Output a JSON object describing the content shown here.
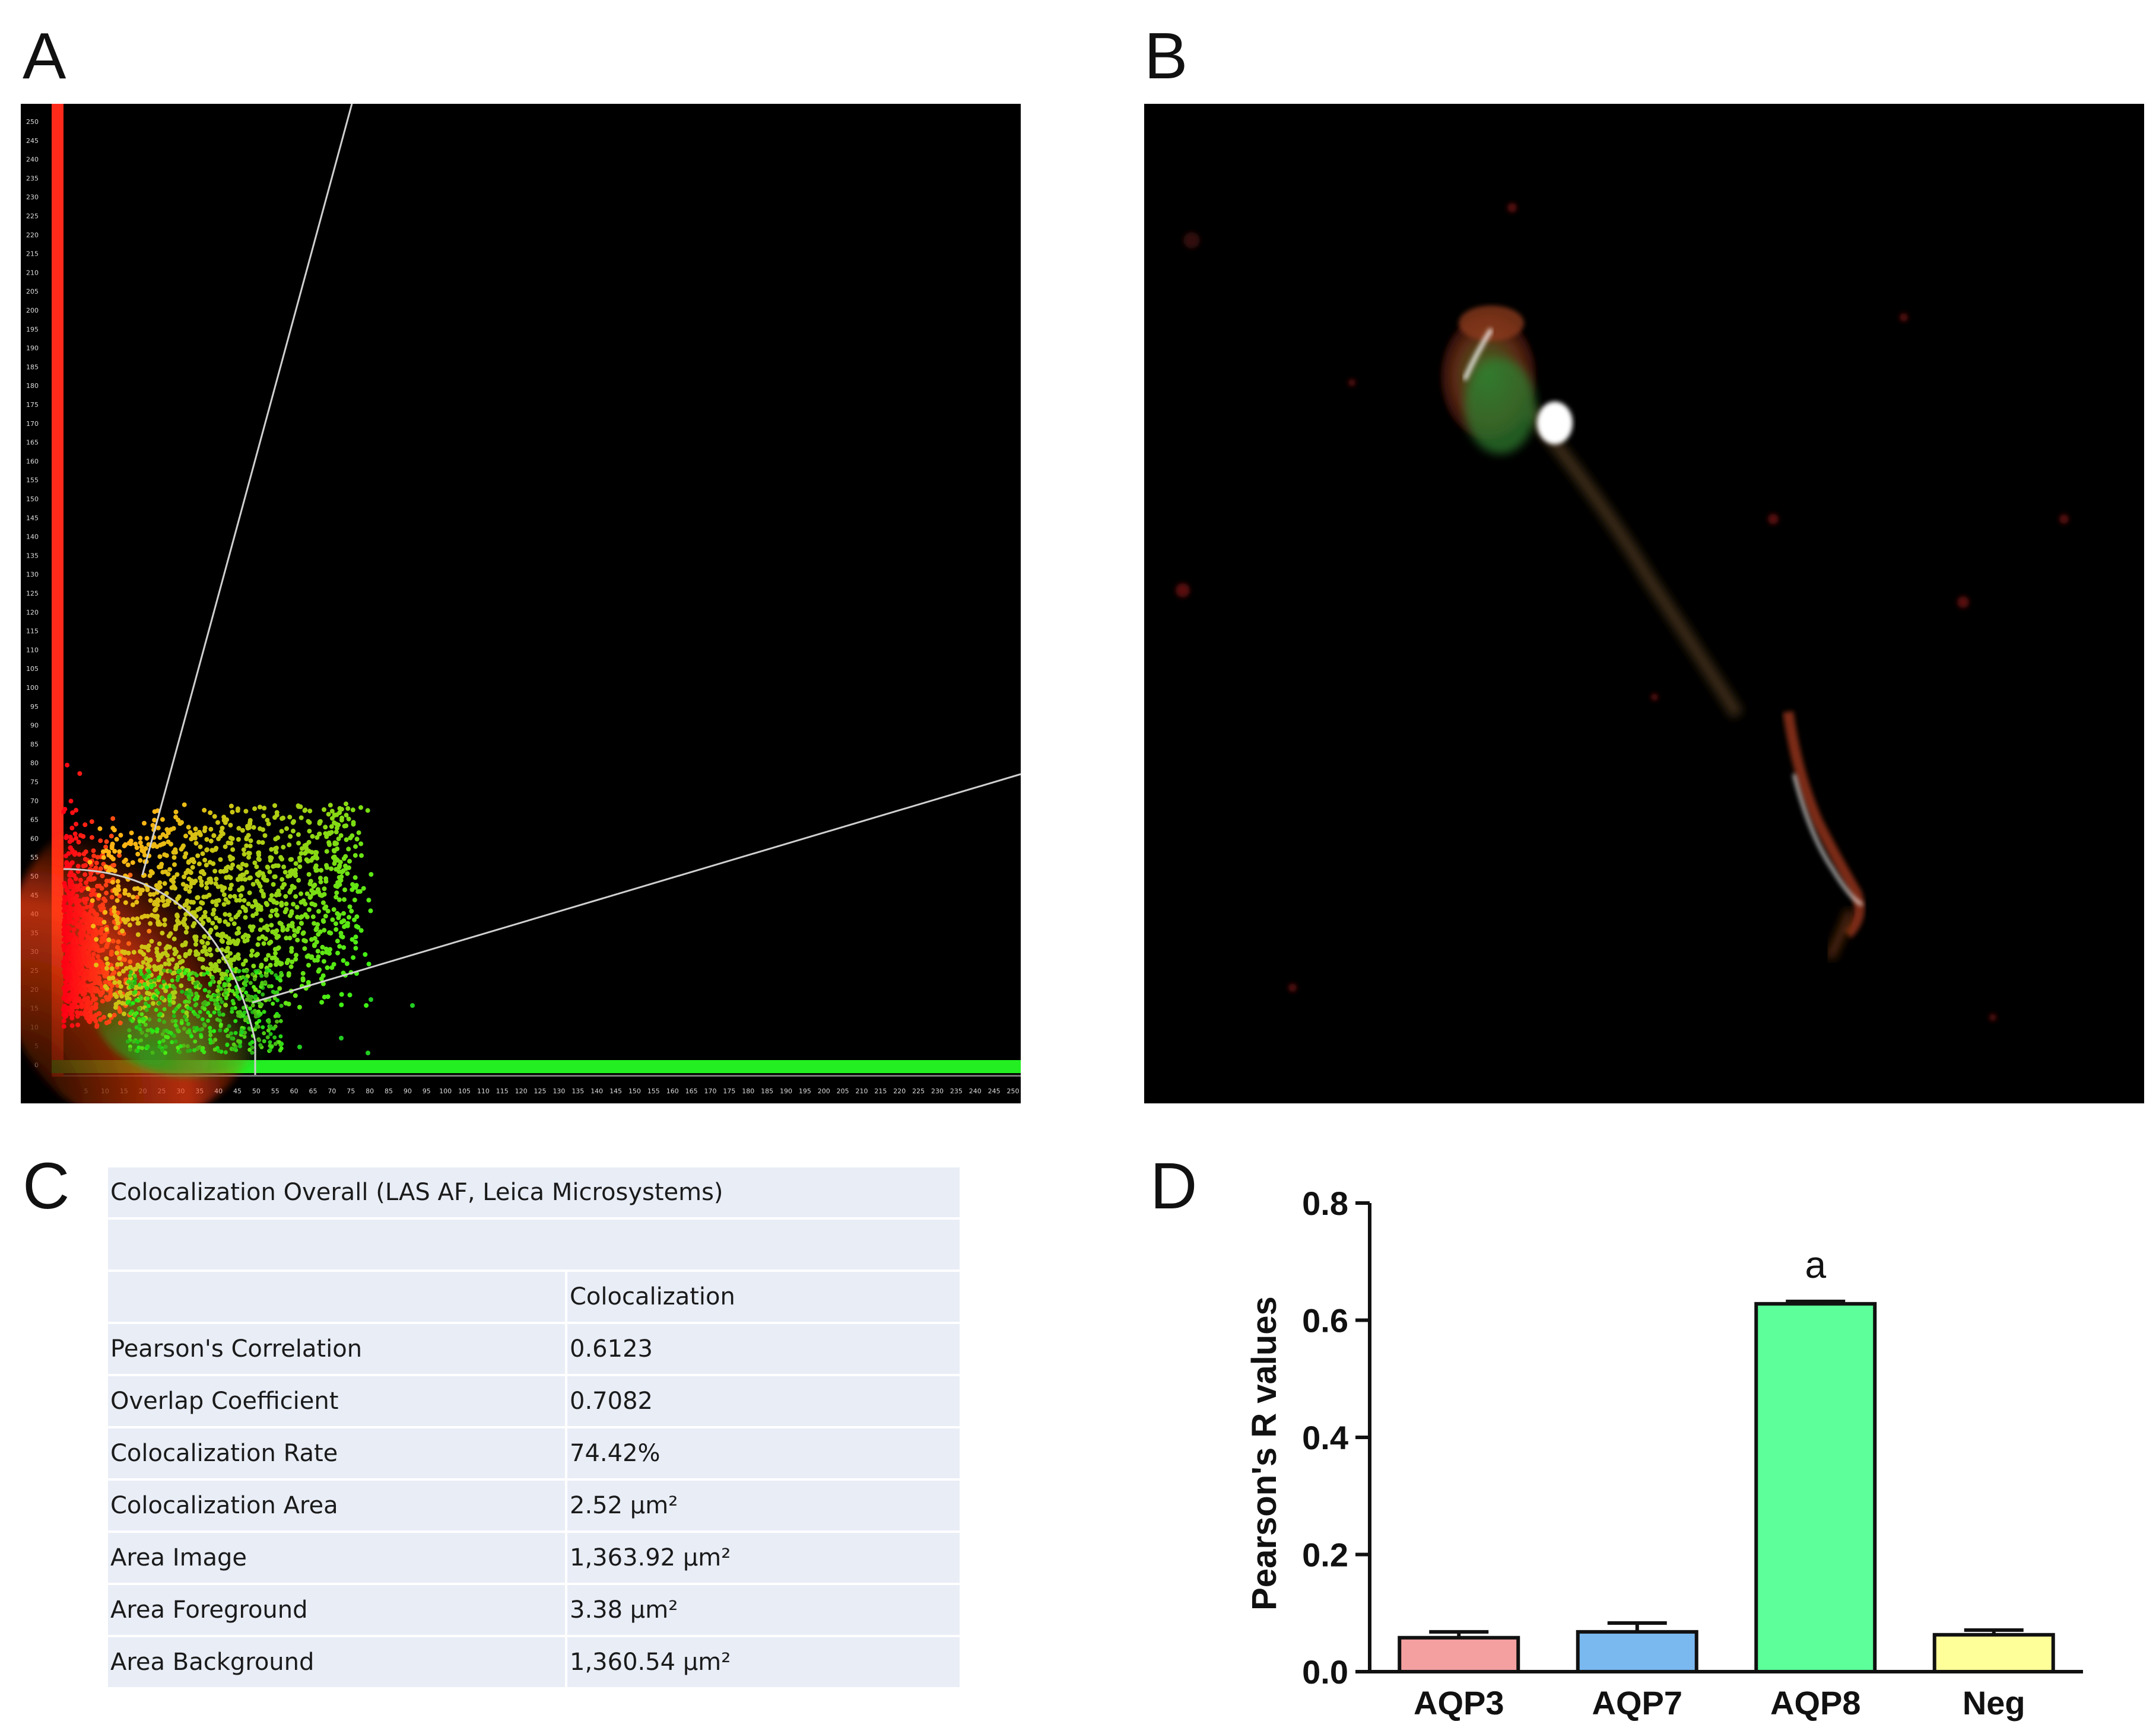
{
  "panels": {
    "a": "A",
    "b": "B",
    "c": "C",
    "d": "D"
  },
  "scatter": {
    "y_ticks": [
      "250",
      "245",
      "240",
      "235",
      "230",
      "225",
      "220",
      "215",
      "210",
      "205",
      "200",
      "195",
      "190",
      "185",
      "180",
      "175",
      "170",
      "165",
      "160",
      "155",
      "150",
      "145",
      "140",
      "135",
      "130",
      "125",
      "120",
      "115",
      "110",
      "105",
      "100",
      "95",
      "90",
      "85",
      "80",
      "75",
      "70",
      "65",
      "60",
      "55",
      "50",
      "45",
      "40",
      "35",
      "30",
      "25",
      "20",
      "15",
      "10",
      "5",
      "0"
    ],
    "x_ticks": [
      "5",
      "10",
      "15",
      "20",
      "25",
      "30",
      "35",
      "40",
      "45",
      "50",
      "55",
      "60",
      "65",
      "70",
      "75",
      "80",
      "85",
      "90",
      "95",
      "100",
      "105",
      "110",
      "115",
      "120",
      "125",
      "130",
      "135",
      "140",
      "145",
      "150",
      "155",
      "160",
      "165",
      "170",
      "175",
      "180",
      "185",
      "190",
      "195",
      "200",
      "205",
      "210",
      "215",
      "220",
      "225",
      "230",
      "235",
      "240",
      "245",
      "250"
    ],
    "colors": {
      "red_channel": "#ff2a1a",
      "green_channel": "#22ee22",
      "background": "#000000"
    }
  },
  "table": {
    "title": "Colocalization  Overall (LAS AF, Leica Microsystems)",
    "column_header": "Colocalization",
    "rows": [
      {
        "label": "Pearson's Correlation",
        "value": "0.6123"
      },
      {
        "label": "Overlap Coefficient",
        "value": "0.7082"
      },
      {
        "label": "Colocalization  Rate",
        "value": "74.42%"
      },
      {
        "label": "Colocalization  Area",
        "value": "2.52 µm²"
      },
      {
        "label": "Area Image",
        "value": "1,363.92 µm²"
      },
      {
        "label": "Area Foreground",
        "value": "3.38 µm²"
      },
      {
        "label": "Area Background",
        "value": "1,360.54 µm²"
      }
    ]
  },
  "chart_data": {
    "type": "bar",
    "categories": [
      "AQP3",
      "AQP7",
      "AQP8",
      "Neg"
    ],
    "values": [
      0.058,
      0.068,
      0.628,
      0.063
    ],
    "errors": [
      0.01,
      0.015,
      0.004,
      0.008
    ],
    "colors": [
      "#f4a0a0",
      "#7ab8f0",
      "#5cff9a",
      "#ffff99"
    ],
    "annotations": [
      {
        "category": "AQP8",
        "text": "a"
      }
    ],
    "ylabel": "Pearson's R values",
    "y_ticks": [
      "0.0",
      "0.2",
      "0.4",
      "0.6",
      "0.8"
    ],
    "ylim": [
      0,
      0.8
    ],
    "legend": "none",
    "grid": false
  }
}
